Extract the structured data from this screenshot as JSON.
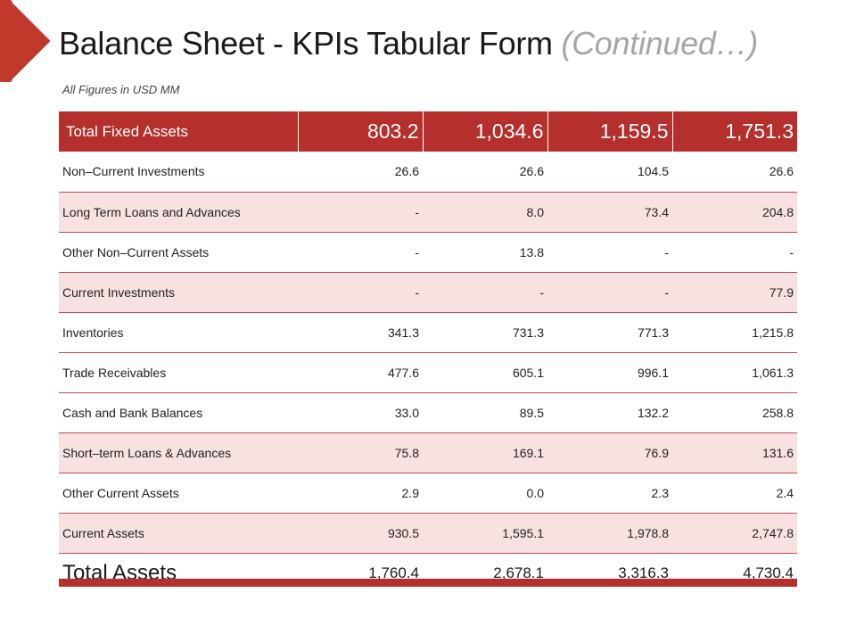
{
  "title": {
    "main": "Balance Sheet - KPIs Tabular Form ",
    "continued": "(Continued…)"
  },
  "subtitle": "All Figures in USD MM",
  "colors": {
    "accent": "#b52f2c",
    "row_pink": "#f8e1e1",
    "title_continued": "#a6a6a6"
  },
  "table": {
    "header_row": {
      "label": "Total Fixed Assets",
      "values": [
        "803.2",
        "1,034.6",
        "1,159.5",
        "1,751.3"
      ]
    },
    "rows": [
      {
        "label": "Non–Current  Investments",
        "values": [
          "26.6",
          "26.6",
          "104.5",
          "26.6"
        ]
      },
      {
        "label": "Long Term Loans and Advances",
        "values": [
          "-",
          "8.0",
          "73.4",
          "204.8"
        ]
      },
      {
        "label": "Other Non–Current  Assets",
        "values": [
          "-",
          "13.8",
          "-",
          "-"
        ]
      },
      {
        "label": "Current  Investments",
        "values": [
          "-",
          "-",
          "-",
          "77.9"
        ]
      },
      {
        "label": "Inventories",
        "values": [
          "341.3",
          "731.3",
          "771.3",
          "1,215.8"
        ]
      },
      {
        "label": "Trade Receivables",
        "values": [
          "477.6",
          "605.1",
          "996.1",
          "1,061.3"
        ]
      },
      {
        "label": "Cash and Bank Balances",
        "values": [
          "33.0",
          "89.5",
          "132.2",
          "258.8"
        ]
      },
      {
        "label": "Short–term Loans & Advances",
        "values": [
          "75.8",
          "169.1",
          "76.9",
          "131.6"
        ]
      },
      {
        "label": "Other Current Assets",
        "values": [
          "2.9",
          "0.0",
          "2.3",
          "2.4"
        ]
      },
      {
        "label": "Current Assets",
        "values": [
          "930.5",
          "1,595.1",
          "1,978.8",
          "2,747.8"
        ]
      }
    ],
    "total_row": {
      "label": "Total Assets",
      "values": [
        "1,760.4",
        "2,678.1",
        "3,316.3",
        "4,730.4"
      ]
    }
  }
}
